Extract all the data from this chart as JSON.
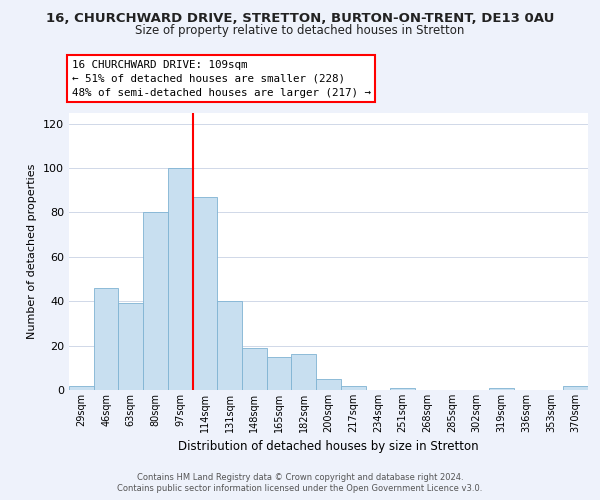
{
  "title": "16, CHURCHWARD DRIVE, STRETTON, BURTON-ON-TRENT, DE13 0AU",
  "subtitle": "Size of property relative to detached houses in Stretton",
  "xlabel": "Distribution of detached houses by size in Stretton",
  "ylabel": "Number of detached properties",
  "bin_labels": [
    "29sqm",
    "46sqm",
    "63sqm",
    "80sqm",
    "97sqm",
    "114sqm",
    "131sqm",
    "148sqm",
    "165sqm",
    "182sqm",
    "200sqm",
    "217sqm",
    "234sqm",
    "251sqm",
    "268sqm",
    "285sqm",
    "302sqm",
    "319sqm",
    "336sqm",
    "353sqm",
    "370sqm"
  ],
  "bar_heights": [
    2,
    46,
    39,
    80,
    100,
    87,
    40,
    19,
    15,
    16,
    5,
    2,
    0,
    1,
    0,
    0,
    0,
    1,
    0,
    0,
    2
  ],
  "bar_color": "#c8dff0",
  "bar_edge_color": "#7fb3d3",
  "red_line_x_label": "114sqm",
  "ylim": [
    0,
    125
  ],
  "yticks": [
    0,
    20,
    40,
    60,
    80,
    100,
    120
  ],
  "annotation_title": "16 CHURCHWARD DRIVE: 109sqm",
  "annotation_line1": "← 51% of detached houses are smaller (228)",
  "annotation_line2": "48% of semi-detached houses are larger (217) →",
  "footer1": "Contains HM Land Registry data © Crown copyright and database right 2024.",
  "footer2": "Contains public sector information licensed under the Open Government Licence v3.0.",
  "background_color": "#eef2fb",
  "plot_bg_color": "#ffffff",
  "grid_color": "#d0d8e8"
}
